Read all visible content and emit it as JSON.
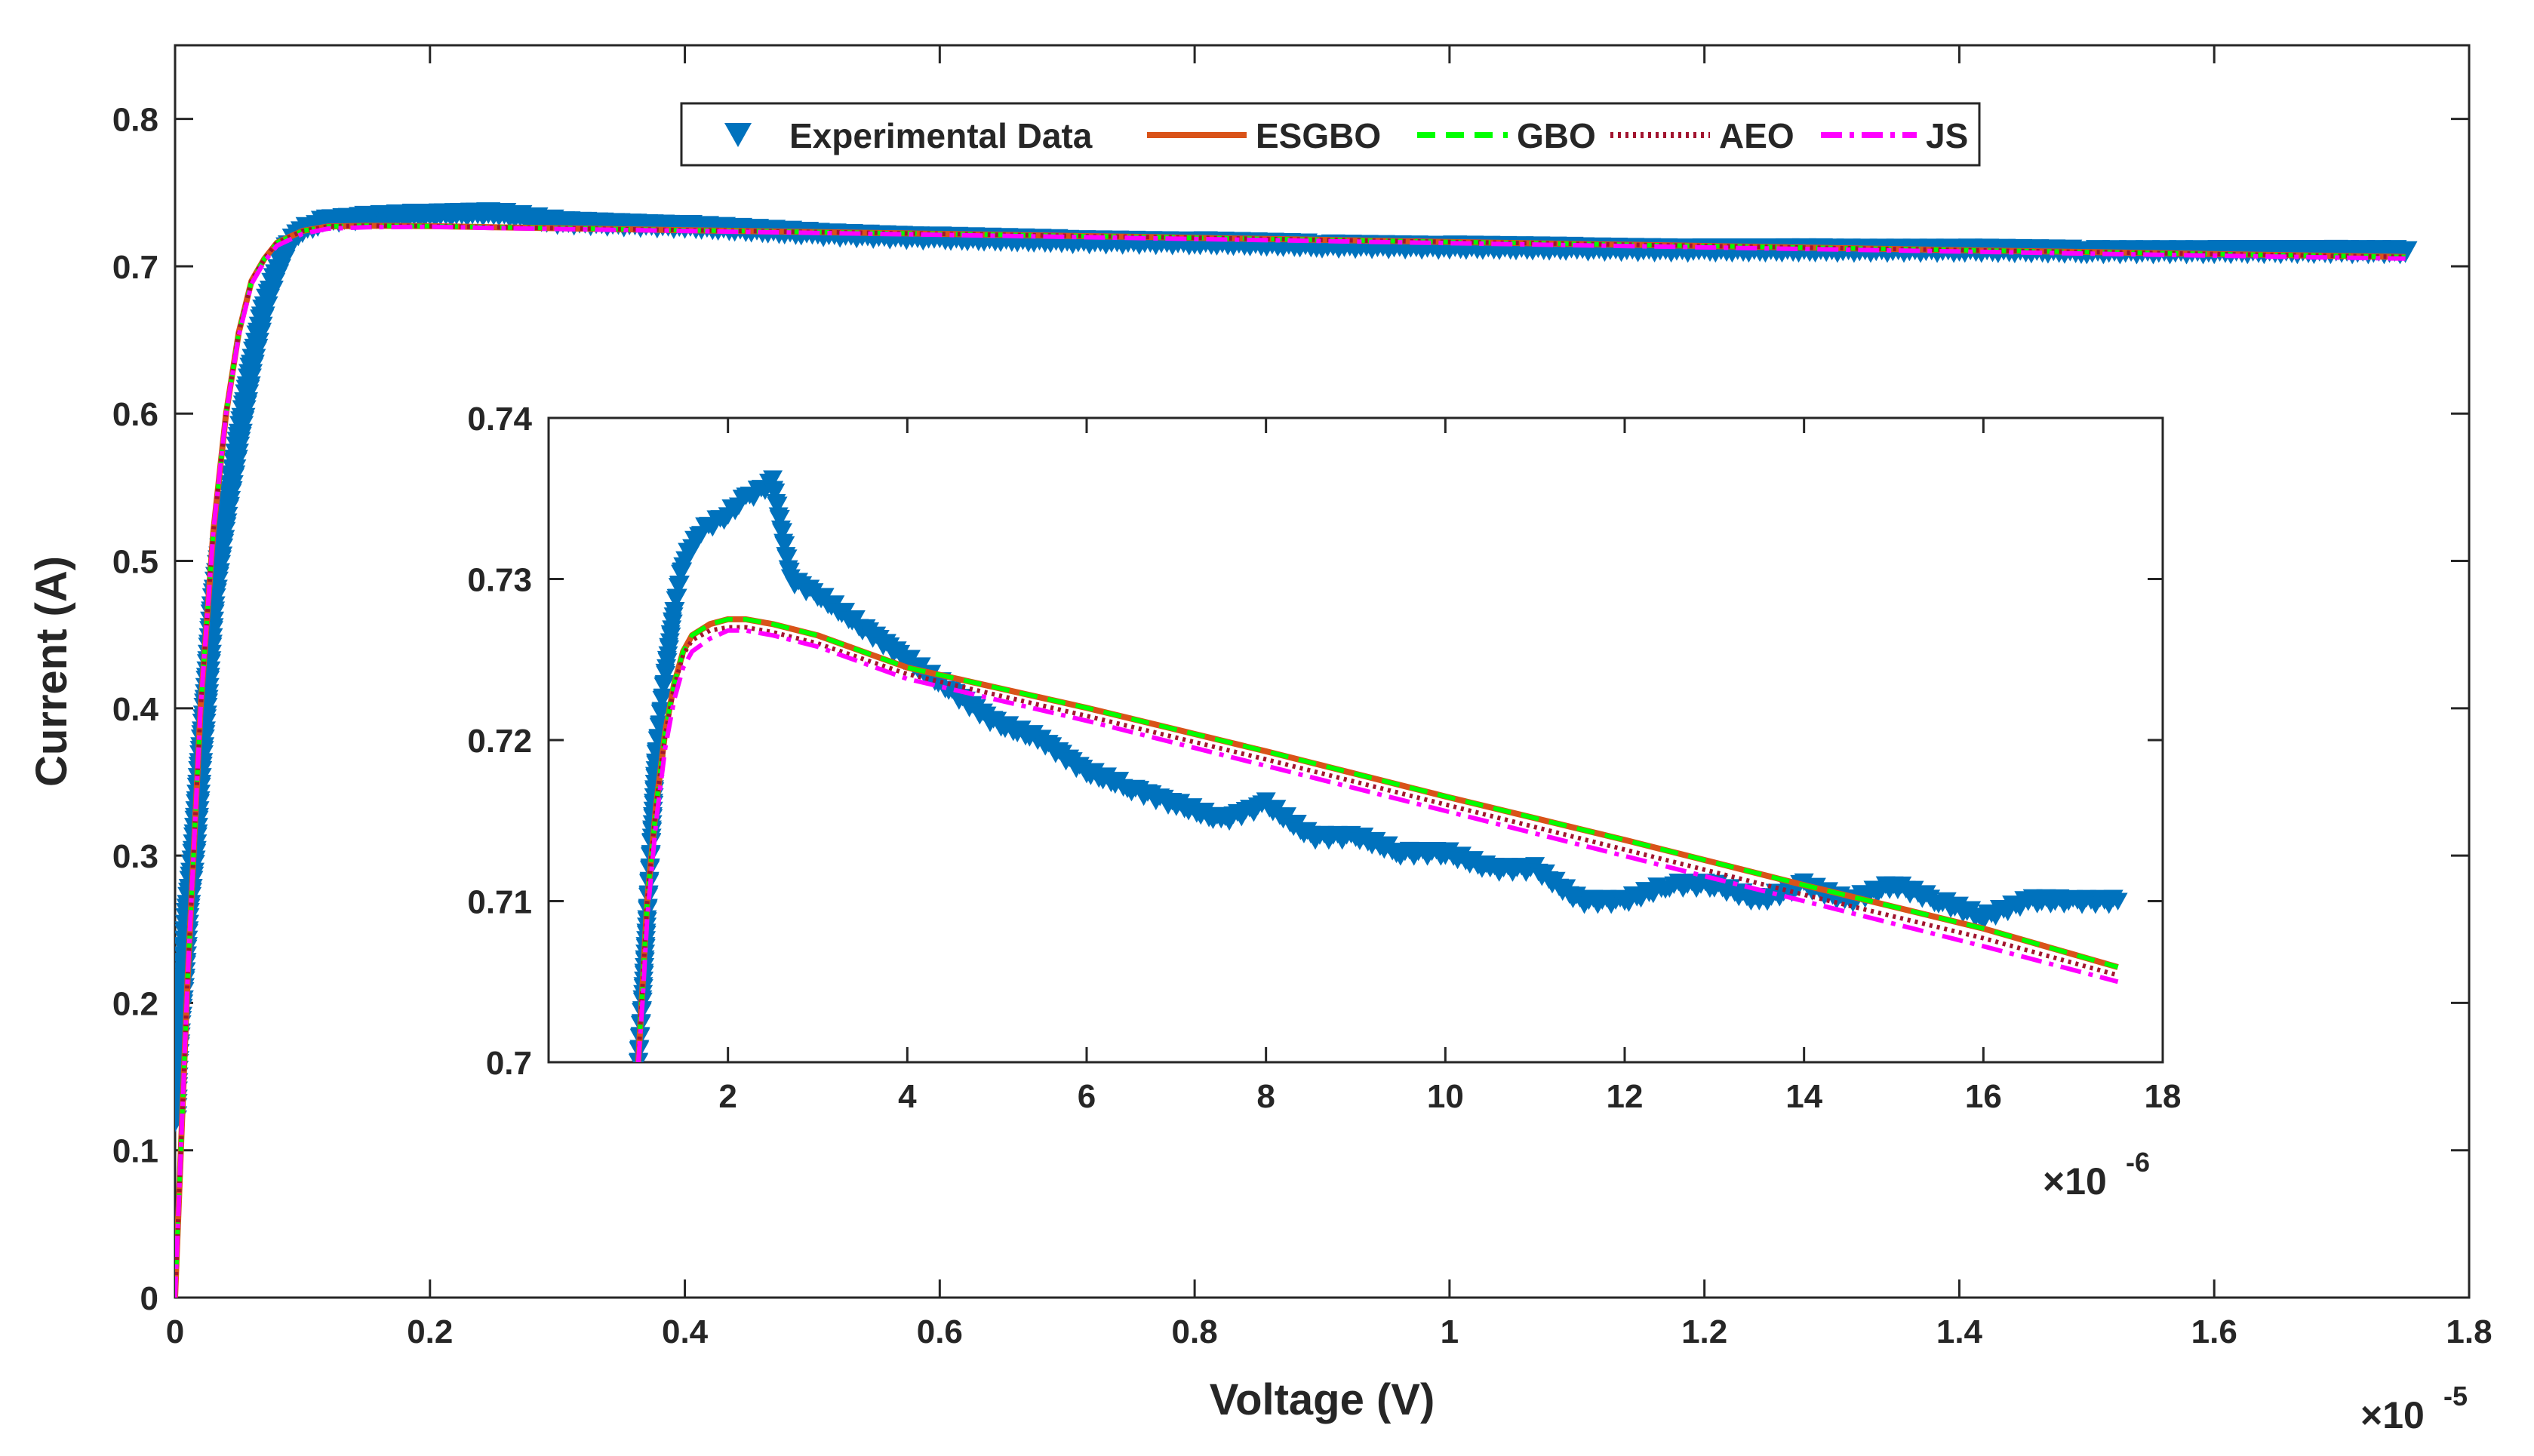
{
  "colors": {
    "experimental": "#0072BD",
    "esgbo": "#D95319",
    "gbo": "#00FF00",
    "aeo": "#A2142F",
    "js": "#FF00FF",
    "axis": "#262626"
  },
  "chart_data": [
    {
      "type": "line",
      "id": "main",
      "xlabel": "Voltage (V)",
      "ylabel": "Current (A)",
      "xlim": [
        0,
        1.8e-05
      ],
      "ylim": [
        0,
        0.85
      ],
      "x_ticks": [
        0,
        0.2,
        0.4,
        0.6,
        0.8,
        1,
        1.2,
        1.4,
        1.6,
        1.8
      ],
      "x_tick_labels": [
        "0",
        "0.2",
        "0.4",
        "0.6",
        "0.8",
        "1",
        "1.2",
        "1.4",
        "1.6",
        "1.8"
      ],
      "x_scale_factor": 1e-05,
      "x_exponent_label": {
        "base": "×10",
        "exp": "-5"
      },
      "y_ticks": [
        0,
        0.1,
        0.2,
        0.3,
        0.4,
        0.5,
        0.6,
        0.7,
        0.8
      ],
      "y_tick_labels": [
        "0",
        "0.1",
        "0.2",
        "0.3",
        "0.4",
        "0.5",
        "0.6",
        "0.7",
        "0.8"
      ],
      "legend": {
        "placement": "top-center",
        "orientation": "horizontal",
        "entries": [
          "Experimental Data",
          "ESGBO",
          "GBO",
          "AEO",
          "JS"
        ]
      },
      "series": [
        {
          "name": "Experimental Data",
          "style": "triangle-down markers",
          "x": [
            0,
            1e-08,
            3e-08,
            6e-08,
            1e-07,
            1.5e-07,
            2e-07,
            2.5e-07,
            3e-07,
            4e-07,
            5e-07,
            6e-07,
            7e-07,
            8e-07,
            9e-07,
            1e-06,
            1.2e-06,
            1.5e-06,
            2e-06,
            2.5e-06,
            3e-06,
            4e-06,
            5e-06,
            6e-06,
            7e-06,
            8e-06,
            9e-06,
            1e-05,
            1.1e-05,
            1.2e-05,
            1.3e-05,
            1.4e-05,
            1.5e-05,
            1.6e-05,
            1.7e-05,
            1.75e-05
          ],
          "y": [
            0.12,
            0.15,
            0.18,
            0.21,
            0.26,
            0.3,
            0.36,
            0.41,
            0.47,
            0.53,
            0.58,
            0.63,
            0.67,
            0.695,
            0.715,
            0.724,
            0.731,
            0.733,
            0.735,
            0.736,
            0.73,
            0.727,
            0.722,
            0.719,
            0.717,
            0.716,
            0.714,
            0.713,
            0.712,
            0.711,
            0.711,
            0.711,
            0.71,
            0.71,
            0.71,
            0.71
          ]
        },
        {
          "name": "ESGBO",
          "x": [
            0,
            1e-07,
            2e-07,
            3e-07,
            4e-07,
            5e-07,
            6e-07,
            7e-07,
            8e-07,
            1e-06,
            1.2e-06,
            1.5e-06,
            2e-06,
            2.5e-06,
            4e-06,
            6e-06,
            8e-06,
            1e-05,
            1.2e-05,
            1.4e-05,
            1.6e-05,
            1.75e-05
          ],
          "y": [
            0,
            0.22,
            0.4,
            0.52,
            0.6,
            0.655,
            0.69,
            0.705,
            0.716,
            0.724,
            0.727,
            0.7275,
            0.7272,
            0.7265,
            0.7245,
            0.722,
            0.7193,
            0.7165,
            0.7138,
            0.711,
            0.7083,
            0.7063
          ]
        },
        {
          "name": "GBO",
          "x": [
            0,
            1e-07,
            2e-07,
            3e-07,
            4e-07,
            5e-07,
            6e-07,
            7e-07,
            8e-07,
            1e-06,
            1.2e-06,
            1.5e-06,
            2e-06,
            2.5e-06,
            4e-06,
            6e-06,
            8e-06,
            1e-05,
            1.2e-05,
            1.4e-05,
            1.6e-05,
            1.75e-05
          ],
          "y": [
            0,
            0.22,
            0.4,
            0.52,
            0.6,
            0.655,
            0.69,
            0.705,
            0.716,
            0.724,
            0.727,
            0.7275,
            0.7272,
            0.7265,
            0.7245,
            0.722,
            0.7193,
            0.7165,
            0.7138,
            0.711,
            0.7083,
            0.7063
          ]
        },
        {
          "name": "AEO",
          "x": [
            0,
            1e-07,
            2e-07,
            3e-07,
            4e-07,
            5e-07,
            6e-07,
            7e-07,
            8e-07,
            1e-06,
            1.2e-06,
            1.5e-06,
            2e-06,
            2.5e-06,
            4e-06,
            6e-06,
            8e-06,
            1e-05,
            1.2e-05,
            1.4e-05,
            1.6e-05,
            1.75e-05
          ],
          "y": [
            0,
            0.22,
            0.4,
            0.52,
            0.6,
            0.655,
            0.69,
            0.705,
            0.716,
            0.724,
            0.727,
            0.7275,
            0.7272,
            0.7265,
            0.7245,
            0.722,
            0.7193,
            0.7165,
            0.7138,
            0.711,
            0.7083,
            0.7063
          ]
        },
        {
          "name": "JS",
          "x": [
            0,
            1e-07,
            2e-07,
            3e-07,
            4e-07,
            5e-07,
            6e-07,
            7e-07,
            8e-07,
            1e-06,
            1.2e-06,
            1.5e-06,
            2e-06,
            2.5e-06,
            4e-06,
            6e-06,
            8e-06,
            1e-05,
            1.2e-05,
            1.4e-05,
            1.6e-05,
            1.75e-05
          ],
          "y": [
            0,
            0.22,
            0.4,
            0.52,
            0.6,
            0.653,
            0.688,
            0.703,
            0.714,
            0.722,
            0.7255,
            0.7265,
            0.7268,
            0.726,
            0.724,
            0.7213,
            0.7185,
            0.7157,
            0.7128,
            0.71,
            0.7072,
            0.7052
          ]
        }
      ]
    },
    {
      "type": "line",
      "id": "inset",
      "xlim": [
        0,
        1.8e-05
      ],
      "ylim": [
        0.7,
        0.74
      ],
      "x_ticks": [
        2,
        4,
        6,
        8,
        10,
        12,
        14,
        16,
        18
      ],
      "x_tick_labels": [
        "2",
        "4",
        "6",
        "8",
        "10",
        "12",
        "14",
        "16",
        "18"
      ],
      "x_scale_factor": 1e-06,
      "x_exponent_label": {
        "base": "×10",
        "exp": "-6"
      },
      "y_ticks": [
        0.7,
        0.71,
        0.72,
        0.73,
        0.74
      ],
      "y_tick_labels": [
        "0.7",
        "0.71",
        "0.72",
        "0.73",
        "0.74"
      ],
      "series": [
        {
          "name": "Experimental Data",
          "style": "triangle-down markers",
          "x": [
            1e-06,
            1.05e-06,
            1.1e-06,
            1.15e-06,
            1.2e-06,
            1.3e-06,
            1.4e-06,
            1.5e-06,
            1.7e-06,
            2e-06,
            2.2e-06,
            2.5e-06,
            2.7e-06,
            3e-06,
            3.5e-06,
            4e-06,
            4.5e-06,
            5e-06,
            5.5e-06,
            6e-06,
            6.5e-06,
            7e-06,
            7.5e-06,
            8e-06,
            8.5e-06,
            9e-06,
            9.5e-06,
            1e-05,
            1.05e-05,
            1.1e-05,
            1.15e-05,
            1.2e-05,
            1.25e-05,
            1.3e-05,
            1.35e-05,
            1.4e-05,
            1.45e-05,
            1.5e-05,
            1.55e-05,
            1.6e-05,
            1.65e-05,
            1.7e-05,
            1.75e-05
          ],
          "y": [
            0.7,
            0.704,
            0.709,
            0.714,
            0.719,
            0.724,
            0.728,
            0.731,
            0.733,
            0.734,
            0.735,
            0.736,
            0.73,
            0.729,
            0.727,
            0.725,
            0.723,
            0.721,
            0.72,
            0.718,
            0.717,
            0.716,
            0.715,
            0.716,
            0.714,
            0.714,
            0.713,
            0.713,
            0.712,
            0.712,
            0.71,
            0.71,
            0.711,
            0.711,
            0.71,
            0.711,
            0.71,
            0.711,
            0.71,
            0.709,
            0.71,
            0.71,
            0.71
          ]
        },
        {
          "name": "ESGBO",
          "x": [
            1e-06,
            1.05e-06,
            1.1e-06,
            1.2e-06,
            1.3e-06,
            1.4e-06,
            1.5e-06,
            1.6e-06,
            1.8e-06,
            2e-06,
            2.2e-06,
            2.5e-06,
            3e-06,
            4e-06,
            6e-06,
            8e-06,
            1e-05,
            1.2e-05,
            1.4e-05,
            1.6e-05,
            1.75e-05
          ],
          "y": [
            0.7,
            0.705,
            0.71,
            0.716,
            0.7205,
            0.7235,
            0.7255,
            0.7265,
            0.7272,
            0.7275,
            0.7275,
            0.7272,
            0.7265,
            0.7245,
            0.722,
            0.7193,
            0.7165,
            0.7138,
            0.711,
            0.7083,
            0.7059
          ]
        },
        {
          "name": "GBO",
          "x": [
            1e-06,
            1.05e-06,
            1.1e-06,
            1.2e-06,
            1.3e-06,
            1.4e-06,
            1.5e-06,
            1.6e-06,
            1.8e-06,
            2e-06,
            2.2e-06,
            2.5e-06,
            3e-06,
            4e-06,
            6e-06,
            8e-06,
            1e-05,
            1.2e-05,
            1.4e-05,
            1.6e-05,
            1.75e-05
          ],
          "y": [
            0.7,
            0.705,
            0.71,
            0.716,
            0.7205,
            0.7235,
            0.7255,
            0.7265,
            0.7272,
            0.7275,
            0.7275,
            0.7272,
            0.7265,
            0.7245,
            0.722,
            0.7193,
            0.7165,
            0.7138,
            0.711,
            0.7083,
            0.7059
          ]
        },
        {
          "name": "AEO",
          "x": [
            1e-06,
            1.05e-06,
            1.1e-06,
            1.2e-06,
            1.3e-06,
            1.4e-06,
            1.5e-06,
            1.6e-06,
            1.8e-06,
            2e-06,
            2.2e-06,
            2.5e-06,
            3e-06,
            4e-06,
            6e-06,
            8e-06,
            1e-05,
            1.2e-05,
            1.4e-05,
            1.6e-05,
            1.75e-05
          ],
          "y": [
            0.7,
            0.705,
            0.71,
            0.716,
            0.7203,
            0.7233,
            0.7253,
            0.7262,
            0.7268,
            0.727,
            0.727,
            0.7267,
            0.726,
            0.7241,
            0.7215,
            0.7188,
            0.716,
            0.7132,
            0.7104,
            0.7077,
            0.7054
          ]
        },
        {
          "name": "JS",
          "x": [
            1e-06,
            1.05e-06,
            1.1e-06,
            1.2e-06,
            1.3e-06,
            1.4e-06,
            1.5e-06,
            1.6e-06,
            1.8e-06,
            2e-06,
            2.2e-06,
            2.5e-06,
            3e-06,
            4e-06,
            6e-06,
            8e-06,
            1e-05,
            1.2e-05,
            1.4e-05,
            1.6e-05,
            1.75e-05
          ],
          "y": [
            0.7,
            0.704,
            0.709,
            0.715,
            0.7195,
            0.7225,
            0.7245,
            0.7255,
            0.7263,
            0.7268,
            0.7268,
            0.7265,
            0.7258,
            0.7238,
            0.7212,
            0.7184,
            0.7156,
            0.7128,
            0.71,
            0.7072,
            0.705
          ]
        }
      ]
    }
  ]
}
